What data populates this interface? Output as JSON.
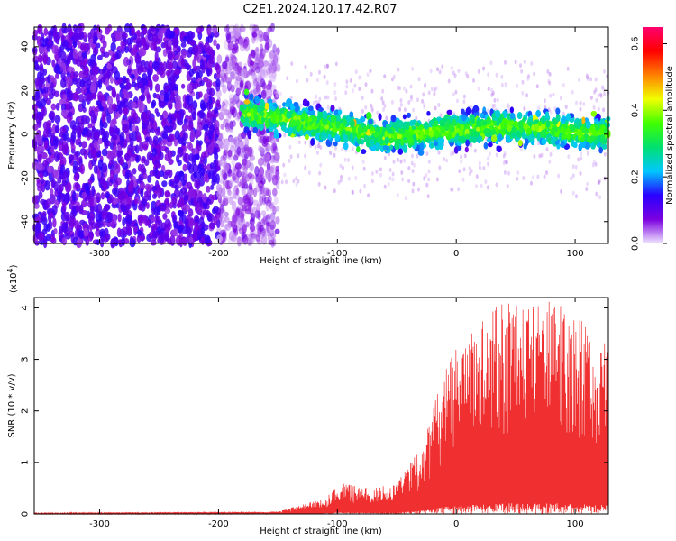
{
  "title": "C2E1.2024.120.17.42.R07",
  "chart_data": [
    {
      "type": "heatmap",
      "xlabel": "Height of straight line (km)",
      "ylabel": "Frequency (Hz)",
      "xlim": [
        -355,
        128
      ],
      "ylim": [
        -50,
        49
      ],
      "x_ticks": [
        -300,
        -200,
        -100,
        0,
        100
      ],
      "y_ticks": [
        -40,
        -20,
        0,
        20,
        40
      ],
      "colorbar": {
        "label": "Normalized spectral amplitude",
        "range": [
          0,
          0.65
        ],
        "ticks": [
          "0.0",
          "0.2",
          "0.4",
          "0.6"
        ],
        "colormap": [
          "#f0e6ff",
          "#7b00e0",
          "#2a00ff",
          "#00c8ff",
          "#00e070",
          "#40ff00",
          "#f0ff00",
          "#ff8000",
          "#ff0000",
          "#ff0070"
        ]
      },
      "regions": [
        {
          "description_x": [
            -355,
            -150
          ],
          "freq_range": [
            -50,
            49
          ],
          "amplitude": 0.08
        },
        {
          "description_x": [
            -180,
            128
          ],
          "freq_center_start": 10,
          "freq_center_mid": -2,
          "freq_center_end": 2,
          "band_half_width": 10,
          "amplitude_peak": 0.45
        }
      ]
    },
    {
      "type": "line",
      "xlabel": "Height of straight line (km)",
      "ylabel": "SNR (10 * v/v)",
      "y_multiplier": "(x10",
      "y_multiplier_exp": "4",
      "y_multiplier_close": ")",
      "xlim": [
        -355,
        128
      ],
      "ylim": [
        0,
        4.2
      ],
      "x_ticks": [
        -300,
        -200,
        -100,
        0,
        100
      ],
      "y_ticks": [
        0,
        1,
        2,
        3,
        4
      ],
      "color": "#f03030",
      "envelope": [
        {
          "x": -355,
          "max": 0.02
        },
        {
          "x": -150,
          "max": 0.05
        },
        {
          "x": -130,
          "max": 0.18
        },
        {
          "x": -110,
          "max": 0.3
        },
        {
          "x": -100,
          "max": 0.6
        },
        {
          "x": -70,
          "max": 0.5
        },
        {
          "x": -50,
          "max": 0.6
        },
        {
          "x": -30,
          "max": 1.3
        },
        {
          "x": -10,
          "max": 2.8
        },
        {
          "x": 0,
          "max": 3.2
        },
        {
          "x": 20,
          "max": 3.8
        },
        {
          "x": 40,
          "max": 4.2
        },
        {
          "x": 60,
          "max": 4.0
        },
        {
          "x": 80,
          "max": 4.2
        },
        {
          "x": 100,
          "max": 4.0
        },
        {
          "x": 128,
          "max": 3.5
        }
      ]
    }
  ]
}
